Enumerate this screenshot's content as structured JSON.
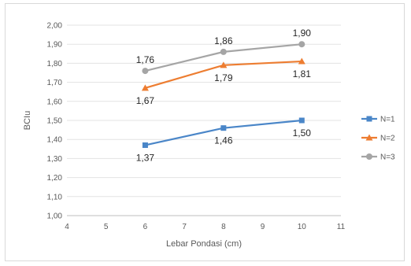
{
  "chart_data": {
    "type": "line",
    "xlabel": "Lebar Pondasi (cm)",
    "ylabel": "BCIu",
    "xlim": [
      4,
      11
    ],
    "ylim": [
      1.0,
      2.0
    ],
    "x_ticks": [
      "4",
      "5",
      "6",
      "7",
      "8",
      "9",
      "10",
      "11"
    ],
    "y_ticks": [
      "1,00",
      "1,10",
      "1,20",
      "1,30",
      "1,40",
      "1,50",
      "1,60",
      "1,70",
      "1,80",
      "1,90",
      "2,00"
    ],
    "grid": "horizontal",
    "legend_position": "right",
    "x": [
      6,
      8,
      10
    ],
    "series": [
      {
        "name": "N=1",
        "values": [
          1.37,
          1.46,
          1.5
        ],
        "labels": [
          "1,37",
          "1,46",
          "1,50"
        ],
        "color": "#4a86c8",
        "marker": "square",
        "label_pos": "below"
      },
      {
        "name": "N=2",
        "values": [
          1.67,
          1.79,
          1.81
        ],
        "labels": [
          "1,67",
          "1,79",
          "1,81"
        ],
        "color": "#ed7d31",
        "marker": "triangle",
        "label_pos": "below"
      },
      {
        "name": "N=3",
        "values": [
          1.76,
          1.86,
          1.9
        ],
        "labels": [
          "1,76",
          "1,86",
          "1,90"
        ],
        "color": "#a5a5a5",
        "marker": "circle",
        "label_pos": "above"
      }
    ]
  }
}
